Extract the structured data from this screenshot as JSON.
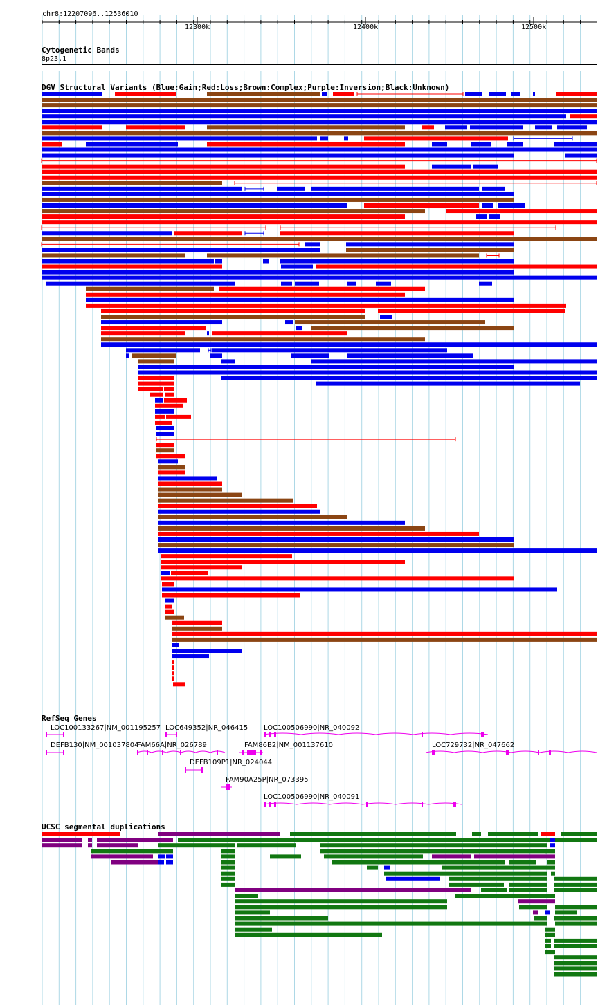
{
  "ruler": {
    "position_label": "chr8:12207096..12536010",
    "ticks": [
      "12300k",
      "12400k",
      "12500k"
    ]
  },
  "tracks": {
    "cytoband": {
      "title": "Cytogenetic Bands",
      "band": "8p23.1"
    },
    "dgv": {
      "title": "DGV Structural Variants (Blue:Gain;Red:Loss;Brown:Complex;Purple:Inversion;Black:Unknown)"
    },
    "refseq": {
      "title": "RefSeq Genes",
      "genes": [
        "LOC100133267|NM_001195257",
        "LOC649352|NR_046415",
        "LOC100506990|NR_040092",
        "DEFB130|NM_001037804",
        "FAM66A|NR_026789",
        "FAM86B2|NM_001137610",
        "LOC729732|NR_047662",
        "DEFB109P1|NR_024044",
        "FAM90A25P|NR_073395",
        "LOC100506990|NR_040091"
      ]
    },
    "segdup": {
      "title": "UCSC segmental duplications"
    }
  },
  "colors": {
    "gain": "#0000ee",
    "loss": "#ff0000",
    "complex": "#8b4513",
    "inversion": "#800080",
    "gene": "#ee00ee",
    "segdup_green": "#117711",
    "gridline": "#add8e6"
  }
}
